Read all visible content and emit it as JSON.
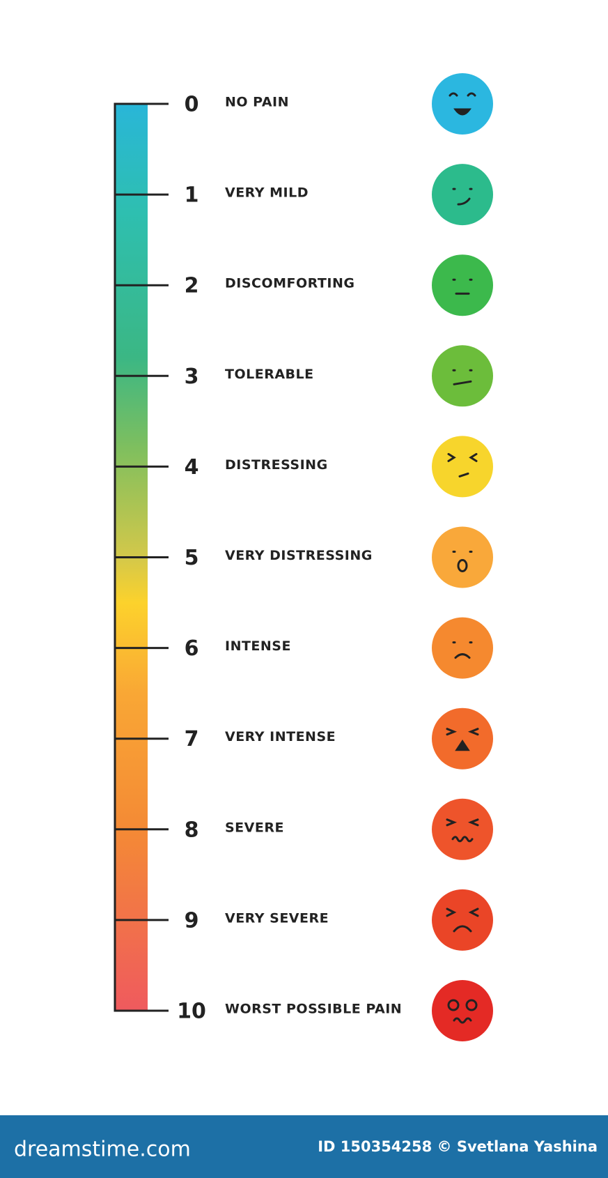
{
  "levels": [
    {
      "number": 0,
      "label": "NO PAIN",
      "color": "#2bb7e0"
    },
    {
      "number": 1,
      "label": "VERY MILD",
      "color": "#2cbb8c"
    },
    {
      "number": 2,
      "label": "DISCOMFORTING",
      "color": "#3cb94c"
    },
    {
      "number": 3,
      "label": "TOLERABLE",
      "color": "#6cbd3b"
    },
    {
      "number": 4,
      "label": "DISTRESSING",
      "color": "#f7d52c"
    },
    {
      "number": 5,
      "label": "VERY DISTRESSING",
      "color": "#f9a83a"
    },
    {
      "number": 6,
      "label": "INTENSE",
      "color": "#f5892f"
    },
    {
      "number": 7,
      "label": "VERY INTENSE",
      "color": "#f26b2b"
    },
    {
      "number": 8,
      "label": "SEVERE",
      "color": "#ee542b"
    },
    {
      "number": 9,
      "label": "VERY SEVERE",
      "color": "#ea4527"
    },
    {
      "number": 10,
      "label": "WORST POSSIBLE PAIN",
      "color": "#e42a25"
    }
  ],
  "footer": {
    "logo": "dreamstime.com",
    "credit": "ID 150354258 © Svetlana Yashina"
  }
}
